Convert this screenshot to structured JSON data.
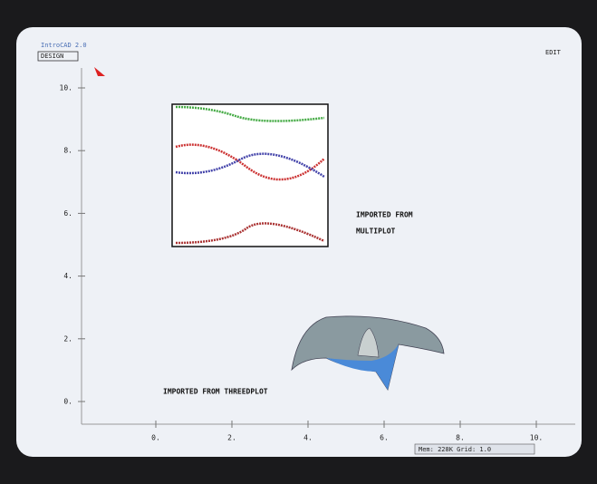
{
  "window": {
    "title": "IntroCAD 2.0",
    "menu_left": "DESIGN",
    "menu_right": "EDIT"
  },
  "drawing": {
    "yticks": [
      {
        "value": 10,
        "label": "10."
      },
      {
        "value": 8,
        "label": "8."
      },
      {
        "value": 6,
        "label": "6."
      },
      {
        "value": 4,
        "label": "4."
      },
      {
        "value": 2,
        "label": "2."
      },
      {
        "value": 0,
        "label": "0."
      }
    ],
    "xticks": [
      {
        "value": 0,
        "label": "0."
      },
      {
        "value": 2,
        "label": "2."
      },
      {
        "value": 4,
        "label": "4."
      },
      {
        "value": 6,
        "label": "6."
      },
      {
        "value": 8,
        "label": "8."
      },
      {
        "value": 10,
        "label": "10."
      }
    ],
    "annotations": [
      "IMPORTED FROM",
      "MULTIPLOT",
      "IMPORTED FROM THREEDPLOT"
    ]
  },
  "status": "Mem: 228K  Grid: 1.0"
}
